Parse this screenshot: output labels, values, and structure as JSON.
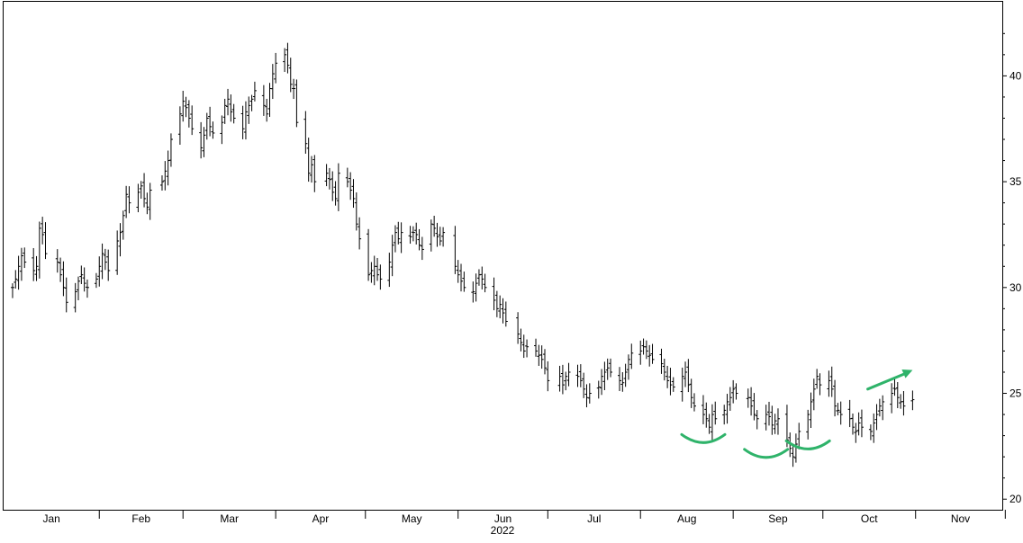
{
  "chart_data": {
    "type": "ohlc",
    "year_label": "2022",
    "x_tick_labels": [
      "Jan",
      "Feb",
      "Mar",
      "Apr",
      "May",
      "Jun",
      "Jul",
      "Aug",
      "Sep",
      "Oct",
      "Nov"
    ],
    "y_tick_labels": [
      "20",
      "25",
      "30",
      "35",
      "40"
    ],
    "y_ticks": [
      20,
      25,
      30,
      35,
      40
    ],
    "ylim": [
      19.5,
      43.5
    ],
    "axis_position": "right",
    "grid": false,
    "legend": "none",
    "colors": {
      "bars": "#000000",
      "annotation": "#2fb36a"
    },
    "annotation_arrow": {
      "from_date": "2022-10-16",
      "from_value": 25.2,
      "to_date": "2022-10-31",
      "to_value": 26.1
    },
    "annotation_arcs": [
      {
        "shape": "trough-arc",
        "center_date": "2022-08-22",
        "value": 22.8
      },
      {
        "shape": "trough-arc",
        "center_date": "2022-09-12",
        "value": 22.1
      },
      {
        "shape": "trough-arc",
        "center_date": "2022-09-26",
        "value": 22.5
      }
    ],
    "closes": [
      [
        "2022-01-03",
        30.0
      ],
      [
        "2022-01-04",
        30.4
      ],
      [
        "2022-01-05",
        31.0
      ],
      [
        "2022-01-06",
        31.5
      ],
      [
        "2022-01-07",
        31.2
      ],
      [
        "2022-01-10",
        30.8
      ],
      [
        "2022-01-11",
        31.0
      ],
      [
        "2022-01-12",
        32.8
      ],
      [
        "2022-01-13",
        32.5
      ],
      [
        "2022-01-14",
        31.6
      ],
      [
        "2022-01-18",
        31.2
      ],
      [
        "2022-01-19",
        30.6
      ],
      [
        "2022-01-20",
        30.0
      ],
      [
        "2022-01-21",
        29.3
      ],
      [
        "2022-01-24",
        29.8
      ],
      [
        "2022-01-25",
        30.3
      ],
      [
        "2022-01-26",
        30.6
      ],
      [
        "2022-01-27",
        30.2
      ],
      [
        "2022-01-28",
        30.0
      ],
      [
        "2022-01-31",
        30.4
      ],
      [
        "2022-02-01",
        31.0
      ],
      [
        "2022-02-02",
        31.6
      ],
      [
        "2022-02-03",
        31.2
      ],
      [
        "2022-02-04",
        30.8
      ],
      [
        "2022-02-07",
        32.2
      ],
      [
        "2022-02-08",
        32.6
      ],
      [
        "2022-02-09",
        33.4
      ],
      [
        "2022-02-10",
        34.4
      ],
      [
        "2022-02-11",
        34.0
      ],
      [
        "2022-02-14",
        34.5
      ],
      [
        "2022-02-15",
        34.8
      ],
      [
        "2022-02-16",
        34.2
      ],
      [
        "2022-02-17",
        33.8
      ],
      [
        "2022-02-18",
        34.6
      ],
      [
        "2022-02-22",
        35.0
      ],
      [
        "2022-02-23",
        35.5
      ],
      [
        "2022-02-24",
        36.0
      ],
      [
        "2022-02-25",
        37.0
      ],
      [
        "2022-02-28",
        38.2
      ],
      [
        "2022-03-01",
        38.8
      ],
      [
        "2022-03-02",
        38.5
      ],
      [
        "2022-03-03",
        38.0
      ],
      [
        "2022-03-04",
        37.5
      ],
      [
        "2022-03-07",
        36.6
      ],
      [
        "2022-03-08",
        37.2
      ],
      [
        "2022-03-09",
        38.0
      ],
      [
        "2022-03-10",
        37.6
      ],
      [
        "2022-03-11",
        37.3
      ],
      [
        "2022-03-14",
        37.8
      ],
      [
        "2022-03-15",
        38.6
      ],
      [
        "2022-03-16",
        38.9
      ],
      [
        "2022-03-17",
        38.3
      ],
      [
        "2022-03-18",
        38.0
      ],
      [
        "2022-03-21",
        37.5
      ],
      [
        "2022-03-22",
        38.3
      ],
      [
        "2022-03-23",
        38.6
      ],
      [
        "2022-03-24",
        38.9
      ],
      [
        "2022-03-25",
        39.3
      ],
      [
        "2022-03-28",
        38.6
      ],
      [
        "2022-03-29",
        38.2
      ],
      [
        "2022-03-30",
        39.4
      ],
      [
        "2022-03-31",
        40.1
      ],
      [
        "2022-04-01",
        40.6
      ],
      [
        "2022-04-04",
        41.0
      ],
      [
        "2022-04-05",
        40.5
      ],
      [
        "2022-04-06",
        39.6
      ],
      [
        "2022-04-07",
        39.4
      ],
      [
        "2022-04-08",
        37.8
      ],
      [
        "2022-04-11",
        36.8
      ],
      [
        "2022-04-12",
        35.4
      ],
      [
        "2022-04-13",
        35.8
      ],
      [
        "2022-04-14",
        35.0
      ],
      [
        "2022-04-18",
        35.4
      ],
      [
        "2022-04-19",
        35.1
      ],
      [
        "2022-04-20",
        34.5
      ],
      [
        "2022-04-21",
        34.2
      ],
      [
        "2022-04-22",
        35.4
      ],
      [
        "2022-04-25",
        35.0
      ],
      [
        "2022-04-26",
        34.6
      ],
      [
        "2022-04-27",
        34.2
      ],
      [
        "2022-04-28",
        33.0
      ],
      [
        "2022-04-29",
        32.3
      ],
      [
        "2022-05-02",
        30.6
      ],
      [
        "2022-05-03",
        30.8
      ],
      [
        "2022-05-04",
        31.0
      ],
      [
        "2022-05-05",
        30.6
      ],
      [
        "2022-05-06",
        30.4
      ],
      [
        "2022-05-09",
        31.2
      ],
      [
        "2022-05-10",
        32.0
      ],
      [
        "2022-05-11",
        32.6
      ],
      [
        "2022-05-12",
        32.3
      ],
      [
        "2022-05-13",
        32.6
      ],
      [
        "2022-05-16",
        32.4
      ],
      [
        "2022-05-17",
        32.6
      ],
      [
        "2022-05-18",
        32.5
      ],
      [
        "2022-05-19",
        32.0
      ],
      [
        "2022-05-20",
        31.8
      ],
      [
        "2022-05-23",
        33.0
      ],
      [
        "2022-05-24",
        32.8
      ],
      [
        "2022-05-25",
        32.4
      ],
      [
        "2022-05-26",
        32.2
      ],
      [
        "2022-05-27",
        32.6
      ],
      [
        "2022-05-31",
        31.0
      ],
      [
        "2022-06-01",
        30.6
      ],
      [
        "2022-06-02",
        30.3
      ],
      [
        "2022-06-03",
        30.0
      ],
      [
        "2022-06-06",
        29.8
      ],
      [
        "2022-06-07",
        30.2
      ],
      [
        "2022-06-08",
        30.6
      ],
      [
        "2022-06-09",
        30.4
      ],
      [
        "2022-06-10",
        30.0
      ],
      [
        "2022-06-13",
        29.4
      ],
      [
        "2022-06-14",
        29.0
      ],
      [
        "2022-06-15",
        29.2
      ],
      [
        "2022-06-16",
        28.8
      ],
      [
        "2022-06-17",
        28.4
      ],
      [
        "2022-06-21",
        27.8
      ],
      [
        "2022-06-22",
        27.4
      ],
      [
        "2022-06-23",
        27.0
      ],
      [
        "2022-06-24",
        27.2
      ],
      [
        "2022-06-27",
        27.0
      ],
      [
        "2022-06-28",
        26.8
      ],
      [
        "2022-06-29",
        26.6
      ],
      [
        "2022-06-30",
        26.2
      ],
      [
        "2022-07-01",
        25.6
      ],
      [
        "2022-07-05",
        25.8
      ],
      [
        "2022-07-06",
        25.4
      ],
      [
        "2022-07-07",
        25.8
      ],
      [
        "2022-07-08",
        26.0
      ],
      [
        "2022-07-11",
        25.8
      ],
      [
        "2022-07-12",
        25.6
      ],
      [
        "2022-07-13",
        25.2
      ],
      [
        "2022-07-14",
        24.8
      ],
      [
        "2022-07-15",
        25.0
      ],
      [
        "2022-07-18",
        25.3
      ],
      [
        "2022-07-19",
        25.8
      ],
      [
        "2022-07-20",
        26.0
      ],
      [
        "2022-07-21",
        26.2
      ],
      [
        "2022-07-22",
        26.0
      ],
      [
        "2022-07-25",
        25.6
      ],
      [
        "2022-07-26",
        25.5
      ],
      [
        "2022-07-27",
        26.0
      ],
      [
        "2022-07-28",
        26.6
      ],
      [
        "2022-07-29",
        26.9
      ],
      [
        "2022-08-01",
        27.0
      ],
      [
        "2022-08-02",
        27.2
      ],
      [
        "2022-08-03",
        27.0
      ],
      [
        "2022-08-04",
        26.8
      ],
      [
        "2022-08-05",
        26.6
      ],
      [
        "2022-08-08",
        26.4
      ],
      [
        "2022-08-09",
        26.0
      ],
      [
        "2022-08-10",
        25.6
      ],
      [
        "2022-08-11",
        25.4
      ],
      [
        "2022-08-12",
        25.3
      ],
      [
        "2022-08-15",
        25.8
      ],
      [
        "2022-08-16",
        26.0
      ],
      [
        "2022-08-17",
        25.4
      ],
      [
        "2022-08-18",
        24.8
      ],
      [
        "2022-08-19",
        24.4
      ],
      [
        "2022-08-22",
        24.0
      ],
      [
        "2022-08-23",
        23.8
      ],
      [
        "2022-08-24",
        23.4
      ],
      [
        "2022-08-25",
        24.0
      ],
      [
        "2022-08-26",
        23.8
      ],
      [
        "2022-08-29",
        24.2
      ],
      [
        "2022-08-30",
        24.6
      ],
      [
        "2022-08-31",
        24.8
      ],
      [
        "2022-09-01",
        25.2
      ],
      [
        "2022-09-02",
        25.0
      ],
      [
        "2022-09-06",
        24.8
      ],
      [
        "2022-09-07",
        24.4
      ],
      [
        "2022-09-08",
        24.0
      ],
      [
        "2022-09-09",
        23.8
      ],
      [
        "2022-09-12",
        24.0
      ],
      [
        "2022-09-13",
        23.9
      ],
      [
        "2022-09-14",
        23.5
      ],
      [
        "2022-09-15",
        23.7
      ],
      [
        "2022-09-16",
        23.8
      ],
      [
        "2022-09-19",
        22.8
      ],
      [
        "2022-09-20",
        22.4
      ],
      [
        "2022-09-21",
        22.0
      ],
      [
        "2022-09-22",
        22.6
      ],
      [
        "2022-09-23",
        23.2
      ],
      [
        "2022-09-26",
        24.0
      ],
      [
        "2022-09-27",
        24.6
      ],
      [
        "2022-09-28",
        25.2
      ],
      [
        "2022-09-29",
        25.8
      ],
      [
        "2022-09-30",
        25.4
      ],
      [
        "2022-10-03",
        25.6
      ],
      [
        "2022-10-04",
        25.2
      ],
      [
        "2022-10-05",
        24.4
      ],
      [
        "2022-10-06",
        24.2
      ],
      [
        "2022-10-07",
        24.0
      ],
      [
        "2022-10-10",
        23.8
      ],
      [
        "2022-10-11",
        23.4
      ],
      [
        "2022-10-12",
        23.2
      ],
      [
        "2022-10-13",
        23.6
      ],
      [
        "2022-10-14",
        23.4
      ],
      [
        "2022-10-17",
        23.2
      ],
      [
        "2022-10-18",
        23.6
      ],
      [
        "2022-10-19",
        24.0
      ],
      [
        "2022-10-20",
        24.4
      ],
      [
        "2022-10-21",
        24.6
      ],
      [
        "2022-10-24",
        25.0
      ],
      [
        "2022-10-25",
        25.2
      ],
      [
        "2022-10-26",
        24.8
      ],
      [
        "2022-10-27",
        24.6
      ],
      [
        "2022-10-28",
        24.4
      ],
      [
        "2022-10-31",
        24.7
      ]
    ]
  }
}
